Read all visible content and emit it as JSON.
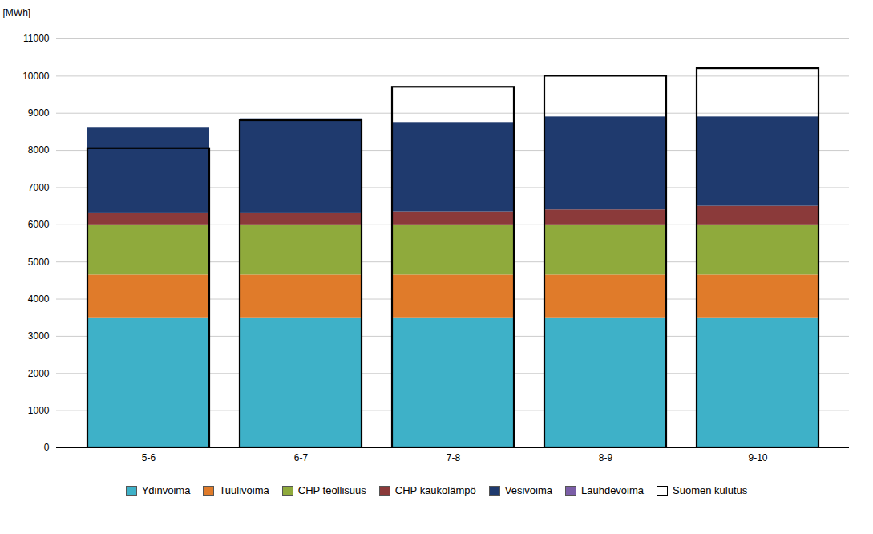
{
  "chart_data": {
    "type": "bar",
    "stacked": true,
    "categories": [
      "5-6",
      "6-7",
      "7-8",
      "8-9",
      "9-10"
    ],
    "series": [
      {
        "name": "Ydinvoima",
        "color": "#3eb1c8",
        "values": [
          3500,
          3500,
          3500,
          3500,
          3500
        ]
      },
      {
        "name": "Tuulivoima",
        "color": "#e07b2a",
        "values": [
          1150,
          1150,
          1150,
          1150,
          1150
        ]
      },
      {
        "name": "CHP teollisuus",
        "color": "#8faa3c",
        "values": [
          1350,
          1350,
          1350,
          1350,
          1350
        ]
      },
      {
        "name": "CHP kaukolämpö",
        "color": "#8b3a3a",
        "values": [
          300,
          300,
          350,
          400,
          500
        ]
      },
      {
        "name": "Vesivoima",
        "color": "#1f3a6e",
        "values": [
          2300,
          2550,
          2400,
          2500,
          2400
        ]
      },
      {
        "name": "Lauhdevoima",
        "color": "#7b5ea7",
        "values": [
          0,
          0,
          0,
          0,
          0
        ]
      },
      {
        "name": "Suomen kulutus",
        "type": "outline",
        "color": "#000000",
        "values": [
          8050,
          8800,
          9700,
          10000,
          10200
        ]
      }
    ],
    "ylabel": "[MWh]",
    "ylim": [
      0,
      11000
    ],
    "yticks": [
      0,
      1000,
      2000,
      3000,
      4000,
      5000,
      6000,
      7000,
      8000,
      9000,
      10000,
      11000
    ],
    "grid": true,
    "legend": "bottom"
  }
}
